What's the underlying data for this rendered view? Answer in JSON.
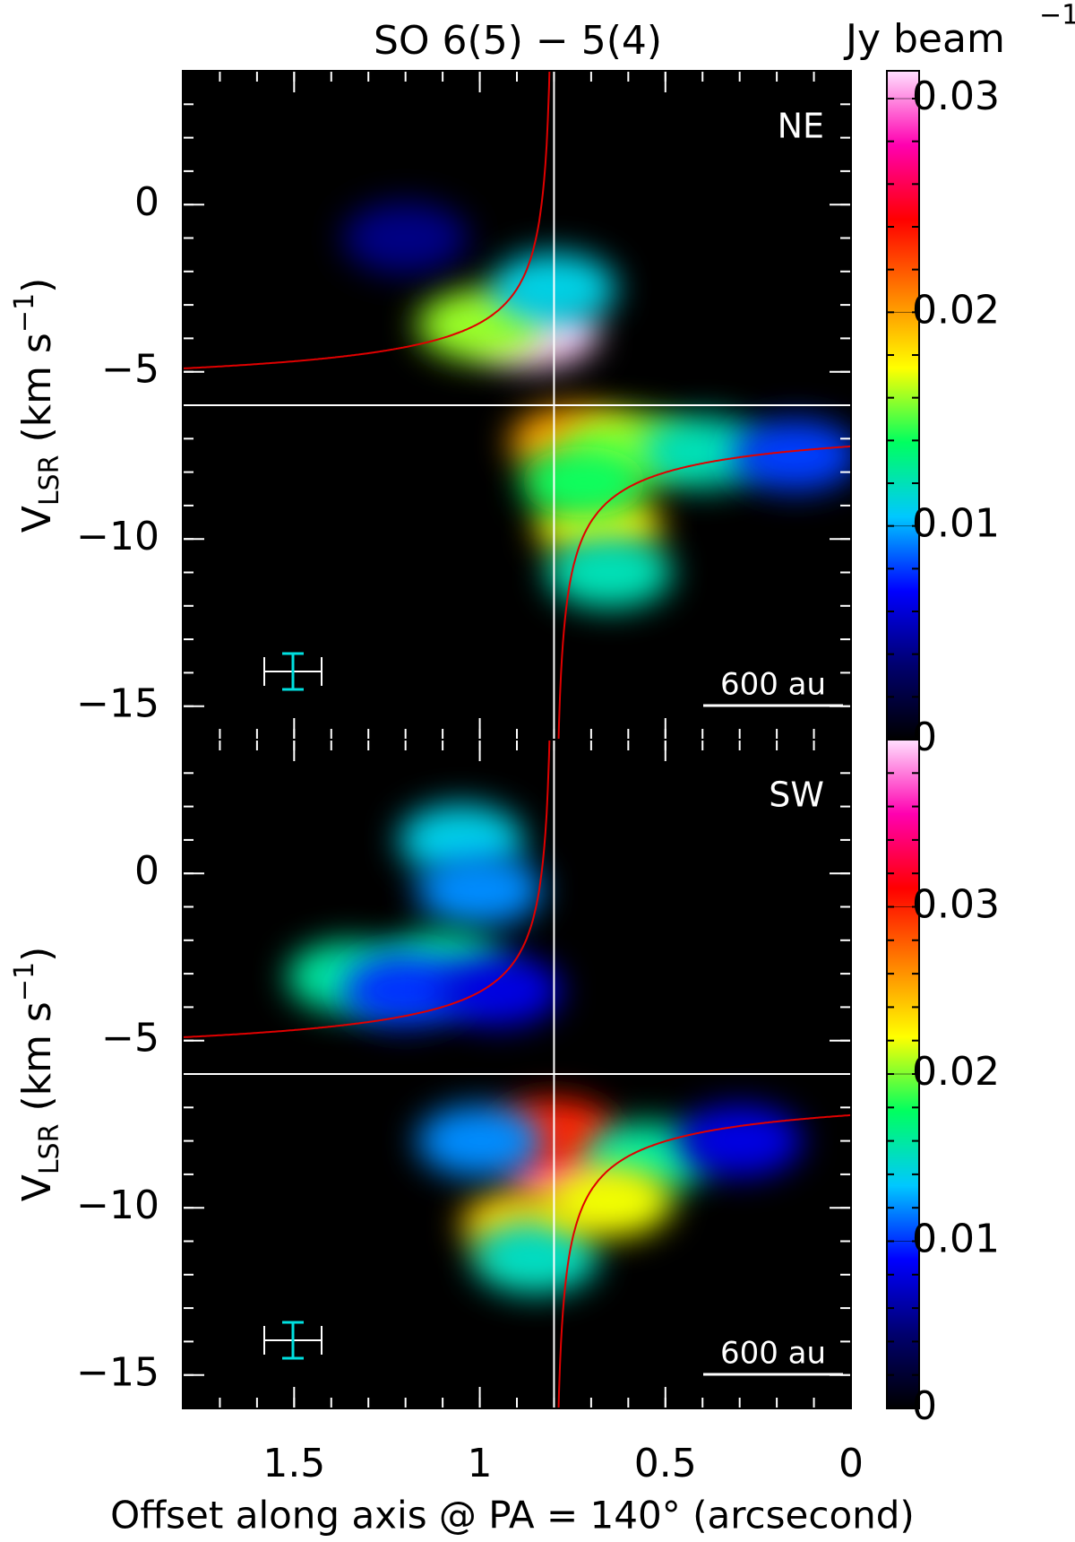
{
  "chart_data": [
    {
      "type": "pv-diagram",
      "title": "SO  6(5) − 5(4)",
      "colorbar_label": "Jy beam",
      "colorbar_label_sup": "−1",
      "panel_label": "NE",
      "scale_bar": "600 au",
      "ylabel": {
        "main": "V",
        "sub": "LSR",
        "unit": " (km s",
        "sup": "−1",
        "close": ")"
      },
      "xlim": [
        1.8,
        0
      ],
      "ylim": [
        -16,
        4
      ],
      "clim": [
        0,
        0.0313
      ],
      "yticks": [
        {
          "value": -15,
          "label": "−15"
        },
        {
          "value": -10,
          "label": "−10"
        },
        {
          "value": -5,
          "label": "−5"
        },
        0
      ],
      "cticks": [
        0,
        0.01,
        0.02,
        0.03
      ],
      "reference_lines": {
        "x": 0.8,
        "y": -6,
        "color": "#ffffff"
      },
      "model_curve": {
        "k": 1.1,
        "color": "#e00000"
      },
      "colormap": [
        "#000000",
        "#00006e",
        "#0000ff",
        "#00c8ff",
        "#00ff60",
        "#ffff00",
        "#ff8000",
        "#ff0000",
        "#ff00b0",
        "#ffe0ff"
      ],
      "x": [
        0.85,
        1.0,
        0.8,
        0.75,
        0.6,
        0.4,
        0.15,
        0.68,
        0.65,
        0.72,
        1.2
      ],
      "y": [
        -3.8,
        -3.6,
        -2.5,
        -7.1,
        -7.3,
        -7.4,
        -7.5,
        -9.6,
        -11.0,
        -8.3,
        -1.0
      ],
      "values": [
        0.031,
        0.016,
        0.011,
        0.02,
        0.016,
        0.012,
        0.008,
        0.018,
        0.012,
        0.014,
        0.004
      ]
    },
    {
      "type": "pv-diagram",
      "panel_label": "SW",
      "scale_bar": "600 au",
      "ylabel": {
        "main": "V",
        "sub": "LSR",
        "unit": " (km s",
        "sup": "−1",
        "close": ")"
      },
      "xlabel": "Offset along axis @ PA = 140° (arcsecond)",
      "xlim": [
        1.8,
        0
      ],
      "ylim": [
        -16,
        4
      ],
      "clim": [
        0,
        0.04
      ],
      "xticks": [
        1.5,
        1,
        0.5,
        0
      ],
      "yticks": [
        {
          "value": -15,
          "label": "−15"
        },
        {
          "value": -10,
          "label": "−10"
        },
        {
          "value": -5,
          "label": "−5"
        },
        0
      ],
      "cticks": [
        0,
        0.01,
        0.02,
        0.03
      ],
      "reference_lines": {
        "x": 0.8,
        "y": -6,
        "color": "#ffffff"
      },
      "model_curve": {
        "k": 1.1,
        "color": "#e00000"
      },
      "colormap": [
        "#000000",
        "#00006e",
        "#0000ff",
        "#00c8ff",
        "#00ff60",
        "#ffff00",
        "#ff8000",
        "#ff0000",
        "#ff00b0",
        "#ffe0ff"
      ],
      "x": [
        1.05,
        1.0,
        1.35,
        1.1,
        1.2,
        0.95,
        0.75,
        0.8,
        0.88,
        1.0,
        0.55,
        0.3,
        0.85,
        0.65
      ],
      "y": [
        1.0,
        -0.5,
        -3.1,
        -2.8,
        -3.5,
        -3.5,
        -9.0,
        -7.8,
        -10.5,
        -8.0,
        -8.5,
        -8.0,
        -11.5,
        -9.8
      ],
      "values": [
        0.014,
        0.012,
        0.016,
        0.016,
        0.01,
        0.008,
        0.037,
        0.03,
        0.024,
        0.012,
        0.016,
        0.008,
        0.015,
        0.022
      ]
    }
  ]
}
